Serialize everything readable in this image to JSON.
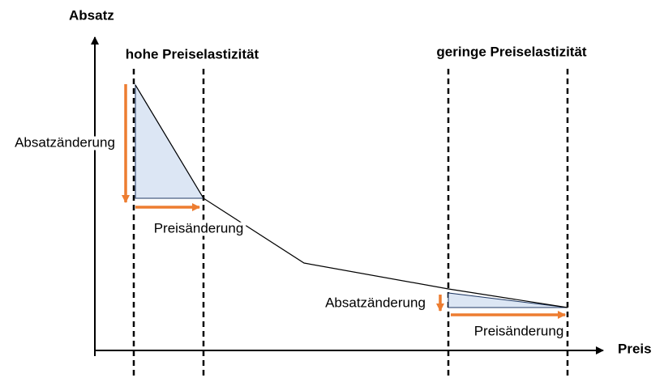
{
  "axes": {
    "y_label": "Absatz",
    "x_label": "Preis"
  },
  "regions": [
    {
      "title": "hohe Preiselastizität",
      "vertical_change_label": "Absatzänderung",
      "horizontal_change_label": "Preisänderung"
    },
    {
      "title": "geringe Preiselastizität",
      "vertical_change_label": "Absatzänderung",
      "horizontal_change_label": "Preisänderung"
    }
  ]
}
